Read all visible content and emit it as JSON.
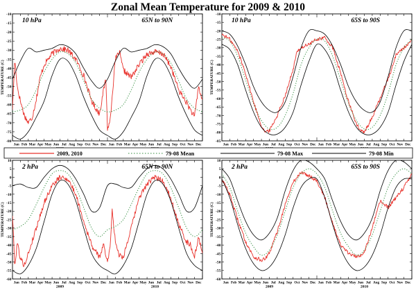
{
  "figure": {
    "title": "Zonal Mean Temperature for 2009 & 2010"
  },
  "colors": {
    "obs": "#e8302a",
    "mean": "#2e8b3a",
    "max": "#000000",
    "min": "#000000",
    "frame": "#000000"
  },
  "legend": {
    "obs": "2009, 2010",
    "mean": "79-08 Mean",
    "max": "79-08 Max",
    "min": "79-08 Min"
  },
  "axes": {
    "ylabel": "TEMPERATURE (C)",
    "months": [
      "Jan",
      "Feb",
      "Mar",
      "Apr",
      "May",
      "Jun",
      "Jul",
      "Aug",
      "Sep",
      "Oct",
      "Nov",
      "Dec",
      "Jan",
      "Feb",
      "Mar",
      "Apr",
      "May",
      "Jun",
      "Jul",
      "Aug",
      "Sep",
      "Oct",
      "Nov",
      "Dec"
    ],
    "years": [
      "2009",
      "2010"
    ]
  },
  "chart_data": [
    {
      "type": "line",
      "level": "10 hPa",
      "region": "65N to 90N",
      "ylabel": "TEMPERATURE (C)",
      "ylim": [
        -80,
        -10
      ],
      "yticks": [
        -80,
        -75,
        -70,
        -65,
        -60,
        -55,
        -50,
        -45,
        -40,
        -35,
        -30,
        -25,
        -20,
        -15,
        -10
      ],
      "x_unit": "month (0 = 1 Jan 2009, 24 = 31 Dec 2010)",
      "xlim": [
        0,
        24
      ],
      "series": [
        {
          "name": "2009, 2010",
          "x": [
            0,
            0.3,
            0.6,
            1,
            1.5,
            2,
            2.5,
            3,
            3.5,
            4,
            5,
            6,
            7,
            8,
            9,
            10,
            10.5,
            11,
            11.3,
            11.6,
            11.8,
            12,
            12.3,
            12.6,
            13,
            13.5,
            14,
            15,
            16,
            17,
            18,
            19,
            20,
            21,
            22,
            22.5,
            23,
            23.5,
            24
          ],
          "values": [
            -62,
            -35,
            -50,
            -58,
            -66,
            -70,
            -67,
            -57,
            -45,
            -38,
            -32,
            -29,
            -30,
            -35,
            -44,
            -58,
            -62,
            -65,
            -57,
            -50,
            -46,
            -73,
            -70,
            -55,
            -35,
            -31,
            -41,
            -45,
            -38,
            -32,
            -31,
            -32,
            -39,
            -52,
            -59,
            -63,
            -67,
            -50,
            -58
          ]
        },
        {
          "name": "79-08 Mean",
          "x": [
            0,
            1,
            2,
            3,
            4,
            5,
            6,
            7,
            8,
            9,
            10,
            11,
            12,
            13,
            14,
            15,
            16,
            17,
            18,
            19,
            20,
            21,
            22,
            23,
            24
          ],
          "values": [
            -64,
            -63,
            -60,
            -52,
            -42,
            -35,
            -31,
            -32,
            -37,
            -47,
            -57,
            -62,
            -64,
            -63,
            -60,
            -52,
            -42,
            -35,
            -31,
            -32,
            -37,
            -47,
            -57,
            -62,
            -64
          ]
        },
        {
          "name": "79-08 Max",
          "x": [
            0,
            1,
            2,
            3,
            4,
            5,
            6,
            7,
            8,
            9,
            10,
            11,
            12,
            13,
            14,
            15,
            16,
            17,
            18,
            19,
            20,
            21,
            22,
            23,
            24
          ],
          "values": [
            -46,
            -36,
            -29,
            -31,
            -30,
            -29,
            -27,
            -28,
            -32,
            -40,
            -47,
            -51,
            -46,
            -36,
            -29,
            -31,
            -30,
            -29,
            -27,
            -28,
            -32,
            -40,
            -47,
            -51,
            -46
          ]
        },
        {
          "name": "79-08 Min",
          "x": [
            0,
            1,
            2,
            3,
            4,
            5,
            6,
            7,
            8,
            9,
            10,
            11,
            12,
            13,
            14,
            15,
            16,
            17,
            18,
            19,
            20,
            21,
            22,
            23,
            24
          ],
          "values": [
            -77,
            -79,
            -75,
            -67,
            -58,
            -44,
            -35,
            -36,
            -44,
            -56,
            -66,
            -74,
            -77,
            -79,
            -75,
            -67,
            -58,
            -44,
            -35,
            -36,
            -44,
            -56,
            -66,
            -74,
            -77
          ]
        }
      ]
    },
    {
      "type": "line",
      "level": "10 hPa",
      "region": "65S to 90S",
      "ylabel": "TEMPERATURE (C)",
      "ylim": [
        -85,
        -10
      ],
      "yticks": [
        -85,
        -80,
        -75,
        -70,
        -65,
        -60,
        -55,
        -50,
        -45,
        -40,
        -35,
        -30,
        -25,
        -20,
        -15,
        -10
      ],
      "x_unit": "month (0 = 1 Jan 2009, 24 = 31 Dec 2010)",
      "xlim": [
        0,
        24
      ],
      "series": [
        {
          "name": "2009, 2010",
          "x": [
            0,
            1,
            2,
            3,
            4,
            5,
            5.5,
            6,
            7,
            8,
            9,
            9.5,
            10,
            10.5,
            11,
            12,
            13,
            14,
            15,
            16,
            17,
            17.5,
            18,
            19,
            20,
            21,
            21.5,
            22,
            22.5,
            23,
            24
          ],
          "values": [
            -22,
            -25,
            -32,
            -45,
            -62,
            -76,
            -80,
            -79,
            -70,
            -58,
            -43,
            -32,
            -30,
            -29,
            -28,
            -25,
            -24,
            -30,
            -45,
            -62,
            -75,
            -79,
            -80,
            -71,
            -60,
            -48,
            -42,
            -34,
            -32,
            -30,
            -26
          ]
        },
        {
          "name": "79-08 Mean",
          "x": [
            0,
            1,
            2,
            3,
            4,
            5,
            6,
            7,
            8,
            9,
            10,
            11,
            12,
            13,
            14,
            15,
            16,
            17,
            18,
            19,
            20,
            21,
            22,
            23,
            24
          ],
          "values": [
            -24,
            -26,
            -35,
            -49,
            -63,
            -73,
            -78,
            -77,
            -70,
            -57,
            -40,
            -30,
            -25,
            -26,
            -35,
            -49,
            -63,
            -73,
            -78,
            -77,
            -70,
            -57,
            -40,
            -30,
            -25
          ]
        },
        {
          "name": "79-08 Max",
          "x": [
            0,
            1,
            2,
            3,
            4,
            5,
            6,
            7,
            8,
            9,
            10,
            11,
            12,
            13,
            14,
            15,
            16,
            17,
            18,
            19,
            20,
            21,
            22,
            23,
            24
          ],
          "values": [
            -20,
            -22,
            -29,
            -40,
            -53,
            -62,
            -67,
            -68,
            -62,
            -47,
            -30,
            -20,
            -20,
            -22,
            -29,
            -40,
            -53,
            -62,
            -67,
            -68,
            -62,
            -47,
            -30,
            -20,
            -20
          ]
        },
        {
          "name": "79-08 Min",
          "x": [
            0,
            1,
            2,
            3,
            4,
            5,
            6,
            7,
            8,
            9,
            10,
            11,
            12,
            13,
            14,
            15,
            16,
            17,
            18,
            19,
            20,
            21,
            22,
            23,
            24
          ],
          "values": [
            -28,
            -31,
            -40,
            -55,
            -68,
            -77,
            -81,
            -81,
            -77,
            -68,
            -52,
            -38,
            -28,
            -31,
            -40,
            -55,
            -68,
            -77,
            -81,
            -81,
            -77,
            -68,
            -52,
            -38,
            -28
          ]
        }
      ]
    },
    {
      "type": "line",
      "level": "2 hPa",
      "region": "65N to 90N",
      "ylabel": "TEMPERATURE (C)",
      "ylim": [
        -60,
        10
      ],
      "yticks": [
        -60,
        -55,
        -50,
        -45,
        -40,
        -35,
        -30,
        -25,
        -20,
        -15,
        -10,
        -5,
        0,
        5,
        10
      ],
      "x_unit": "month (0 = 1 Jan 2009, 24 = 31 Dec 2010)",
      "xlim": [
        0,
        24
      ],
      "series": [
        {
          "name": "2009, 2010",
          "x": [
            0,
            0.3,
            0.6,
            1,
            1.5,
            2,
            3,
            4,
            5,
            6,
            7,
            8,
            9,
            10,
            10.5,
            11,
            11.5,
            12,
            12.3,
            12.6,
            13,
            13.5,
            14,
            15,
            16,
            17,
            18,
            19,
            20,
            21,
            22,
            22.5,
            23,
            23.5,
            24
          ],
          "values": [
            -22,
            -53,
            -38,
            -48,
            -52,
            -45,
            -30,
            -15,
            -5,
            0,
            -1,
            -10,
            -26,
            -40,
            -44,
            -47,
            -40,
            -50,
            -42,
            -20,
            -38,
            -46,
            -47,
            -30,
            -12,
            -4,
            0,
            -2,
            -12,
            -28,
            -38,
            -40,
            -47,
            -36,
            -44
          ]
        },
        {
          "name": "79-08 Mean",
          "x": [
            0,
            1,
            2,
            3,
            4,
            5,
            6,
            7,
            8,
            9,
            10,
            11,
            12,
            13,
            14,
            15,
            16,
            17,
            18,
            19,
            20,
            21,
            22,
            23,
            24
          ],
          "values": [
            -31,
            -29,
            -25,
            -16,
            -6,
            2,
            4,
            2,
            -6,
            -18,
            -30,
            -35,
            -31,
            -29,
            -25,
            -16,
            -6,
            2,
            4,
            2,
            -6,
            -18,
            -30,
            -35,
            -31
          ]
        },
        {
          "name": "79-08 Max",
          "x": [
            0,
            1,
            2,
            3,
            4,
            5,
            6,
            7,
            8,
            9,
            10,
            11,
            12,
            13,
            14,
            15,
            16,
            17,
            18,
            19,
            20,
            21,
            22,
            23,
            24
          ],
          "values": [
            -5,
            -4,
            -6,
            -6,
            0,
            5,
            7,
            5,
            -1,
            -10,
            -20,
            -18,
            -5,
            -4,
            -6,
            -6,
            0,
            5,
            7,
            5,
            -1,
            -10,
            -20,
            -18,
            -5
          ]
        },
        {
          "name": "79-08 Min",
          "x": [
            0,
            1,
            2,
            3,
            4,
            5,
            6,
            7,
            8,
            9,
            10,
            11,
            12,
            13,
            14,
            15,
            16,
            17,
            18,
            19,
            20,
            21,
            22,
            23,
            24
          ],
          "values": [
            -55,
            -57,
            -52,
            -42,
            -26,
            -10,
            -2,
            -4,
            -14,
            -30,
            -45,
            -52,
            -55,
            -57,
            -52,
            -42,
            -26,
            -10,
            -2,
            -4,
            -14,
            -30,
            -45,
            -52,
            -55
          ]
        }
      ]
    },
    {
      "type": "line",
      "level": "2 hPa",
      "region": "65S to 90S",
      "ylabel": "TEMPERATURE (C)",
      "ylim": [
        -60,
        10
      ],
      "yticks": [
        -60,
        -55,
        -50,
        -45,
        -40,
        -35,
        -30,
        -25,
        -20,
        -15,
        -10,
        -5,
        0,
        5,
        10
      ],
      "x_unit": "month (0 = 1 Jan 2009, 24 = 31 Dec 2010)",
      "xlim": [
        0,
        24
      ],
      "series": [
        {
          "name": "2009, 2010",
          "x": [
            0,
            1,
            2,
            3,
            4,
            5,
            5.5,
            6,
            7,
            8,
            9,
            10,
            11,
            12,
            13,
            14,
            15,
            16,
            17,
            17.5,
            18,
            19,
            20,
            21,
            22,
            23,
            24
          ],
          "values": [
            -1,
            -10,
            -25,
            -38,
            -47,
            -49,
            -48,
            -45,
            -32,
            -16,
            -3,
            3,
            1,
            -2,
            -12,
            -27,
            -40,
            -45,
            -47,
            -46,
            -44,
            -30,
            -14,
            -18,
            -12,
            -6,
            2
          ]
        },
        {
          "name": "79-08 Mean",
          "x": [
            0,
            1,
            2,
            3,
            4,
            5,
            6,
            7,
            8,
            9,
            10,
            11,
            12,
            13,
            14,
            15,
            16,
            17,
            18,
            19,
            20,
            21,
            22,
            23,
            24
          ],
          "values": [
            2,
            -6,
            -20,
            -33,
            -41,
            -46,
            -43,
            -34,
            -20,
            -6,
            2,
            5,
            2,
            -6,
            -20,
            -33,
            -41,
            -46,
            -43,
            -34,
            -20,
            -6,
            2,
            5,
            2
          ]
        },
        {
          "name": "79-08 Max",
          "x": [
            0,
            1,
            2,
            3,
            4,
            5,
            6,
            7,
            8,
            9,
            10,
            11,
            12,
            13,
            14,
            15,
            16,
            17,
            18,
            19,
            20,
            21,
            22,
            23,
            24
          ],
          "values": [
            5,
            -1,
            -14,
            -26,
            -34,
            -37,
            -33,
            -24,
            -8,
            4,
            10,
            9,
            5,
            -1,
            -14,
            -26,
            -34,
            -37,
            -33,
            -24,
            -8,
            4,
            10,
            9,
            5
          ]
        },
        {
          "name": "79-08 Min",
          "x": [
            0,
            1,
            2,
            3,
            4,
            5,
            6,
            7,
            8,
            9,
            10,
            11,
            12,
            13,
            14,
            15,
            16,
            17,
            18,
            19,
            20,
            21,
            22,
            23,
            24
          ],
          "values": [
            -1,
            -12,
            -28,
            -42,
            -51,
            -55,
            -53,
            -46,
            -34,
            -18,
            -6,
            -1,
            -1,
            -12,
            -28,
            -42,
            -51,
            -55,
            -53,
            -46,
            -34,
            -18,
            -6,
            -1,
            -1
          ]
        }
      ]
    }
  ]
}
